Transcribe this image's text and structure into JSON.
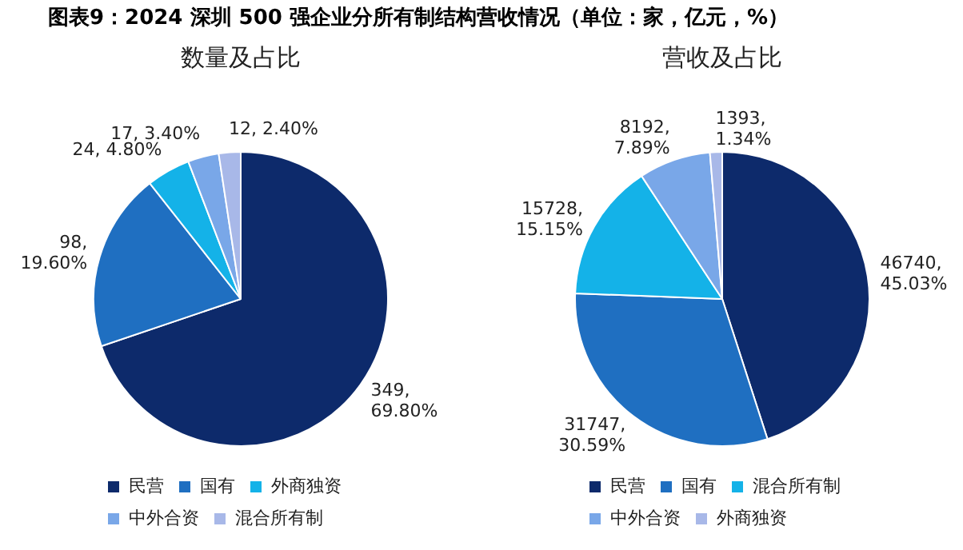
{
  "chart_data": [
    {
      "type": "pie",
      "title": "数量及占比",
      "annotations": [
        "图表9：2024 深圳 500 强企业分所有制结构营收情况（单位：家，亿元，%）"
      ],
      "categories": [
        "民营",
        "国有",
        "外商独资",
        "中外合资",
        "混合所有制"
      ],
      "values": [
        349,
        98,
        24,
        17,
        12
      ],
      "colors": [
        "#0d2a6b",
        "#1f6fc1",
        "#14b2e8",
        "#79a7e8",
        "#a8b8e8"
      ],
      "value_labels": [
        "349,\n69.80%",
        "98,\n19.60%",
        "24, 4.80%",
        "17, 3.40%",
        "12, 2.40%"
      ],
      "legend": "bottom"
    },
    {
      "type": "pie",
      "title": "营收及占比",
      "categories": [
        "民营",
        "国有",
        "混合所有制",
        "中外合资",
        "外商独资"
      ],
      "values": [
        46740,
        31747,
        15728,
        8192,
        1393
      ],
      "colors": [
        "#0d2a6b",
        "#1f6fc1",
        "#14b2e8",
        "#79a7e8",
        "#a8b8e8"
      ],
      "value_labels": [
        "46740,\n45.03%",
        "31747,\n30.59%",
        "15728,\n15.15%",
        "8192,\n7.89%",
        "1393,\n1.34%"
      ],
      "legend": "bottom"
    }
  ]
}
